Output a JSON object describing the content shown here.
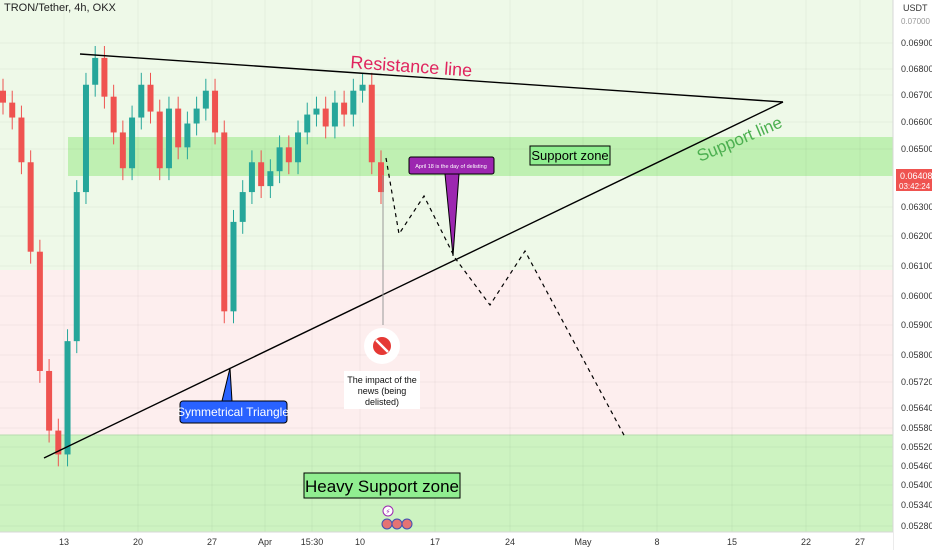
{
  "header": {
    "symbol": "TRON/Tether, 4h, OKX"
  },
  "price_scale": {
    "unit": "USDT",
    "ticks": [
      "0.06900",
      "0.06800",
      "0.06700",
      "0.06600",
      "0.06500",
      "0.06300",
      "0.06200",
      "0.06100",
      "0.06000",
      "0.05900",
      "0.05800",
      "0.05720",
      "0.05640",
      "0.05580",
      "0.05520",
      "0.05460",
      "0.05400",
      "0.05340",
      "0.05280"
    ],
    "top_partial": "0.07000",
    "last_price": "0.06408",
    "countdown": "03:42:24"
  },
  "time_axis": {
    "ticks": [
      "13",
      "20",
      "27",
      "Apr",
      "15:30",
      "10",
      "17",
      "24",
      "May",
      "8",
      "15",
      "22",
      "27"
    ]
  },
  "annotations": {
    "resistance": "Resistance line",
    "support_line": "Support line",
    "support_zone": "Support zone",
    "heavy_support": "Heavy Support zone",
    "triangle": "Symmetrical Triangle",
    "delisting": "April 18 is the day of delisting",
    "news": [
      "The impact of the",
      "news (being",
      "delisted)"
    ]
  },
  "colors": {
    "up": "#26a69a",
    "down": "#ef5350",
    "zone_green": "#90ee90",
    "label_blue": "#2962ff",
    "label_purple": "#9c27b0",
    "resistance_text": "#e0245e",
    "support_text": "#4caf50"
  },
  "chart_data": {
    "type": "candlestick",
    "y_scale": "linear",
    "ylim": [
      0.0526,
      0.0703
    ],
    "series": [
      {
        "name": "close",
        "values": [
          0.067,
          0.0665,
          0.065,
          0.062,
          0.058,
          0.056,
          0.0552,
          0.059,
          0.064,
          0.0676,
          0.0685,
          0.0672,
          0.066,
          0.0648,
          0.0665,
          0.0676,
          0.0667,
          0.0648,
          0.0668,
          0.0655,
          0.0663,
          0.0668,
          0.0674,
          0.066,
          0.06,
          0.063,
          0.064,
          0.065,
          0.0642,
          0.0647,
          0.0655,
          0.065,
          0.066,
          0.0666,
          0.0668,
          0.0662,
          0.067,
          0.0666,
          0.0674,
          0.0676,
          0.065,
          0.064
        ]
      }
    ],
    "resistance_line": [
      [
        0.0688
      ],
      [
        0.0671
      ]
    ],
    "support_line": [
      [
        0.0552
      ],
      [
        0.0671
      ]
    ],
    "support_zone": [
      0.0641,
      0.0655
    ],
    "heavy_support_zone_top": 0.0555,
    "projection_path": [
      0.0647,
      0.0621,
      0.0633,
      0.0612,
      0.0598,
      0.0614,
      0.0556
    ]
  }
}
